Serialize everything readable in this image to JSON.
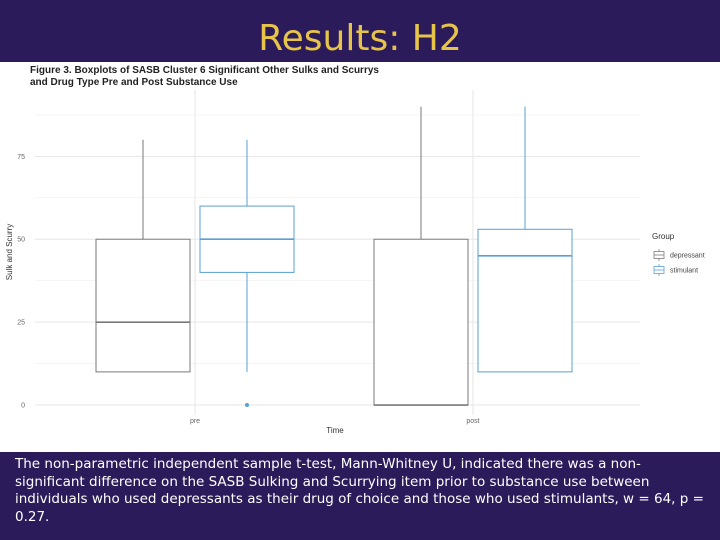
{
  "slide": {
    "title": "Results: H2",
    "body_text": "The non-parametric independent sample t-test, Mann-Whitney U, indicated there was a non-significant difference on the SASB Sulking and Scurrying item prior to substance use between individuals who used depressants as their drug of choice and those who used stimulants, w = 64, p = 0.27.",
    "background_color": "#2b1b5a",
    "title_color": "#e6c44a"
  },
  "figure": {
    "caption_line1": "Figure 3. Boxplots of SASB Cluster 6 Significant Other Sulks and Scurrys",
    "caption_line2": "and Drug Type Pre and Post Substance Use"
  },
  "chart_data": {
    "type": "boxplot",
    "xlabel": "Time",
    "ylabel": "Sulk and Scurry",
    "categories": [
      "pre",
      "post"
    ],
    "y_ticks": [
      0,
      25,
      50,
      75
    ],
    "ylim": [
      -3,
      95
    ],
    "grid": true,
    "legend": {
      "title": "Group",
      "placement": "right",
      "entries": [
        "depressant",
        "stimulant"
      ]
    },
    "series": [
      {
        "name": "depressant",
        "color": "#7a7a7a",
        "boxes": [
          {
            "category": "pre",
            "min": 10,
            "q1": 10,
            "median": 25,
            "q3": 50,
            "max": 80,
            "outliers": []
          },
          {
            "category": "post",
            "min": 0,
            "q1": 0,
            "median": 0,
            "q3": 50,
            "max": 90,
            "outliers": []
          }
        ]
      },
      {
        "name": "stimulant",
        "color": "#5a9fd4",
        "boxes": [
          {
            "category": "pre",
            "min": 10,
            "q1": 40,
            "median": 50,
            "q3": 60,
            "max": 80,
            "outliers": [
              0
            ]
          },
          {
            "category": "post",
            "min": 10,
            "q1": 10,
            "median": 45,
            "q3": 53,
            "max": 90,
            "outliers": []
          }
        ]
      }
    ]
  }
}
